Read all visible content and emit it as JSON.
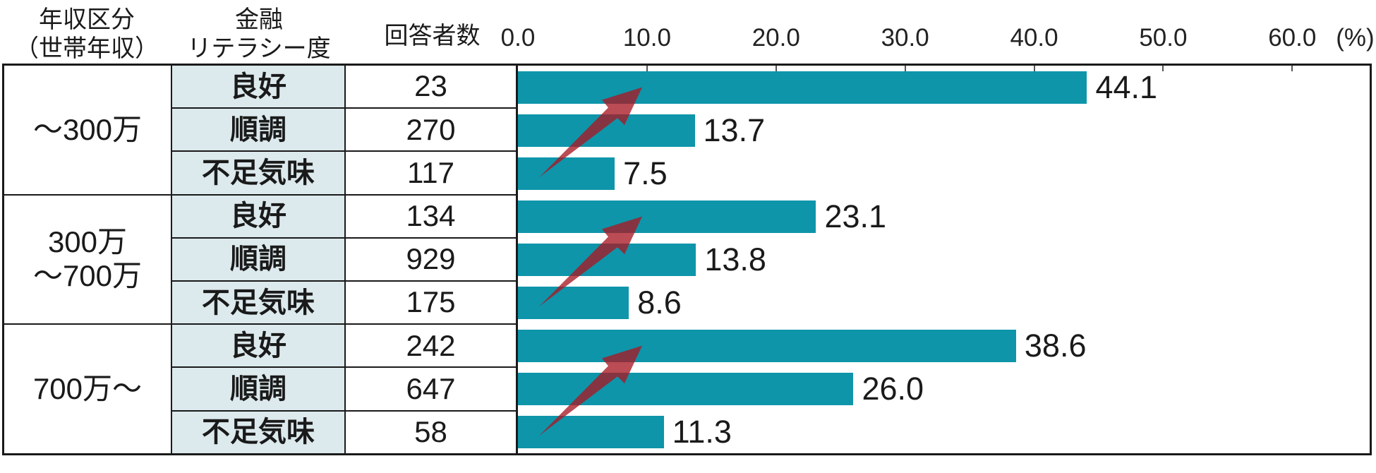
{
  "header": {
    "col_income": "年収区分\n（世帯年収）",
    "col_literacy": "金融\nリテラシー度",
    "col_count": "回答者数"
  },
  "axis": {
    "ticks": [
      {
        "value": 0,
        "label": "0.0"
      },
      {
        "value": 10,
        "label": "10.0"
      },
      {
        "value": 20,
        "label": "20.0"
      },
      {
        "value": 30,
        "label": "30.0"
      },
      {
        "value": 40,
        "label": "40.0"
      },
      {
        "value": 50,
        "label": "50.0"
      },
      {
        "value": 60,
        "label": "60.0"
      }
    ],
    "unit_label": "(%)",
    "max": 66
  },
  "groups": [
    {
      "income": "～300万",
      "rows": [
        {
          "literacy": "良好",
          "count": "23",
          "value": 44.1,
          "value_label": "44.1"
        },
        {
          "literacy": "順調",
          "count": "270",
          "value": 13.7,
          "value_label": "13.7"
        },
        {
          "literacy": "不足気味",
          "count": "117",
          "value": 7.5,
          "value_label": "7.5"
        }
      ]
    },
    {
      "income": "300万\n～700万",
      "rows": [
        {
          "literacy": "良好",
          "count": "134",
          "value": 23.1,
          "value_label": "23.1"
        },
        {
          "literacy": "順調",
          "count": "929",
          "value": 13.8,
          "value_label": "13.8"
        },
        {
          "literacy": "不足気味",
          "count": "175",
          "value": 8.6,
          "value_label": "8.6"
        }
      ]
    },
    {
      "income": "700万～",
      "rows": [
        {
          "literacy": "良好",
          "count": "242",
          "value": 38.6,
          "value_label": "38.6"
        },
        {
          "literacy": "順調",
          "count": "647",
          "value": 26.0,
          "value_label": "26.0"
        },
        {
          "literacy": "不足気味",
          "count": "58",
          "value": 11.3,
          "value_label": "11.3"
        }
      ]
    }
  ],
  "colors": {
    "bar": "#0e95aa",
    "literacy_cell_bg": "#dce9ed",
    "arrow": "rgba(168,24,36,0.78)",
    "border": "#1a1a1a"
  },
  "chart_data": {
    "type": "bar",
    "orientation": "horizontal",
    "title": "",
    "xlabel": "(%)",
    "xlim": [
      0,
      66
    ],
    "x_ticks": [
      0,
      10,
      20,
      30,
      40,
      50,
      60
    ],
    "grid": false,
    "legend": false,
    "row_headers": [
      "年収区分（世帯年収）",
      "金融リテラシー度",
      "回答者数"
    ],
    "groups": [
      {
        "income": "～300万",
        "bars": [
          {
            "literacy": "良好",
            "respondents": 23,
            "percent": 44.1
          },
          {
            "literacy": "順調",
            "respondents": 270,
            "percent": 13.7
          },
          {
            "literacy": "不足気味",
            "respondents": 117,
            "percent": 7.5
          }
        ]
      },
      {
        "income": "300万～700万",
        "bars": [
          {
            "literacy": "良好",
            "respondents": 134,
            "percent": 23.1
          },
          {
            "literacy": "順調",
            "respondents": 929,
            "percent": 13.8
          },
          {
            "literacy": "不足気味",
            "respondents": 175,
            "percent": 8.6
          }
        ]
      },
      {
        "income": "700万～",
        "bars": [
          {
            "literacy": "良好",
            "respondents": 242,
            "percent": 38.6
          },
          {
            "literacy": "順調",
            "respondents": 647,
            "percent": 26.0
          },
          {
            "literacy": "不足気味",
            "respondents": 58,
            "percent": 11.3
          }
        ]
      }
    ],
    "annotations": [
      "red upward swoosh arrow over each income group pointing from 不足気味 bar toward 良好 bar"
    ]
  }
}
